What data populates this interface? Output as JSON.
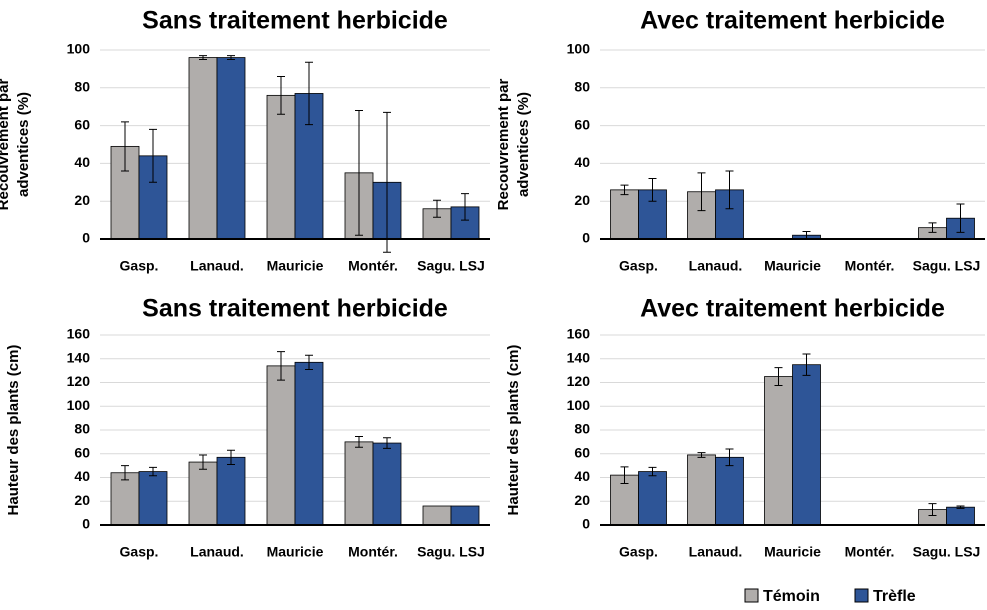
{
  "chart_data": [
    {
      "type": "bar",
      "title": "Sans traitement herbicide",
      "ylabel": [
        "Recouvrement par",
        "adventices (%)"
      ],
      "categories": [
        "Gasp.",
        "Lanaud.",
        "Mauricie",
        "Montér.",
        "Sagu. LSJ"
      ],
      "series": [
        {
          "name": "Témoin",
          "color": "#b0adab",
          "values": [
            49,
            96,
            76,
            35,
            16
          ],
          "errors": [
            13,
            1,
            10,
            33,
            4.5
          ]
        },
        {
          "name": "Trèfle",
          "color": "#2e5597",
          "values": [
            44,
            96,
            77,
            30,
            17
          ],
          "errors": [
            14,
            1,
            16.5,
            37,
            7
          ]
        }
      ],
      "ylim": [
        0,
        100
      ],
      "yticks": [
        0,
        20,
        40,
        60,
        80,
        100
      ],
      "grid": true
    },
    {
      "type": "bar",
      "title": "Avec traitement herbicide",
      "ylabel": [
        "Recouvrement par",
        "adventices (%)"
      ],
      "categories": [
        "Gasp.",
        "Lanaud.",
        "Mauricie",
        "Montér.",
        "Sagu. LSJ"
      ],
      "series": [
        {
          "color": "#b0adab",
          "values": [
            26,
            25,
            0,
            0,
            6
          ],
          "errors": [
            2.5,
            10,
            null,
            null,
            2.5
          ]
        },
        {
          "color": "#2e5597",
          "values": [
            26,
            26,
            2,
            0,
            11
          ],
          "errors": [
            6,
            10,
            2,
            null,
            7.5
          ]
        }
      ],
      "ylim": [
        0,
        100
      ],
      "yticks": [
        0,
        20,
        40,
        60,
        80,
        100
      ],
      "grid": true
    },
    {
      "type": "bar",
      "title": "Sans traitement herbicide",
      "ylabel": [
        "Hauteur des plants (cm)"
      ],
      "categories": [
        "Gasp.",
        "Lanaud.",
        "Mauricie",
        "Montér.",
        "Sagu. LSJ"
      ],
      "series": [
        {
          "color": "#b0adab",
          "values": [
            44,
            53,
            134,
            70,
            16
          ],
          "errors": [
            6,
            6,
            12,
            4.5,
            null
          ]
        },
        {
          "color": "#2e5597",
          "values": [
            45,
            57,
            137,
            69,
            16
          ],
          "errors": [
            3.5,
            6,
            6,
            4.5,
            null
          ]
        }
      ],
      "ylim": [
        0,
        160
      ],
      "yticks": [
        0,
        20,
        40,
        60,
        80,
        100,
        120,
        140,
        160
      ],
      "grid": true
    },
    {
      "type": "bar",
      "title": "Avec traitement herbicide",
      "ylabel": [
        "Hauteur des plants (cm)"
      ],
      "categories": [
        "Gasp.",
        "Lanaud.",
        "Mauricie",
        "Montér.",
        "Sagu. LSJ"
      ],
      "series": [
        {
          "color": "#b0adab",
          "values": [
            42,
            59,
            125,
            0,
            13
          ],
          "errors": [
            7,
            2,
            7.5,
            null,
            5
          ]
        },
        {
          "color": "#2e5597",
          "values": [
            45,
            57,
            135,
            0,
            15
          ],
          "errors": [
            3.5,
            7,
            9,
            null,
            1
          ]
        }
      ],
      "ylim": [
        0,
        160
      ],
      "yticks": [
        0,
        20,
        40,
        60,
        80,
        100,
        120,
        140,
        160
      ],
      "grid": true
    }
  ]
}
